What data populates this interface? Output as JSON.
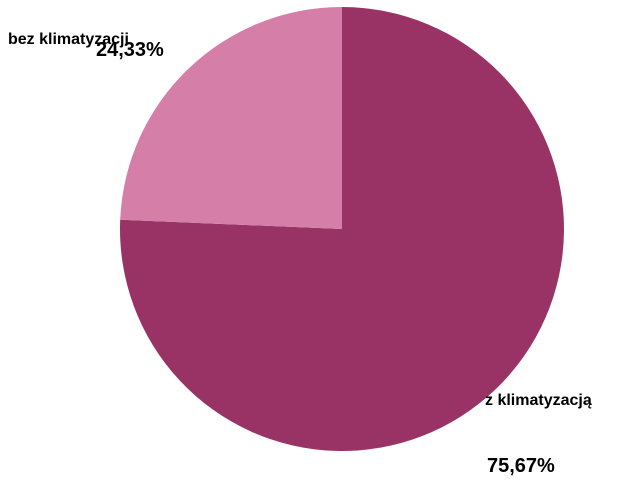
{
  "chart_data": {
    "type": "pie",
    "title": "",
    "slices": [
      {
        "label": "z klimatyzacją",
        "value": 75.67,
        "value_label": "75,67%",
        "color": "#993366"
      },
      {
        "label": "bez klimatyzacji",
        "value": 24.33,
        "value_label": "24,33%",
        "color": "#d57ea8"
      }
    ],
    "legend": "none",
    "start": "12 o'clock",
    "direction": "clockwise"
  }
}
